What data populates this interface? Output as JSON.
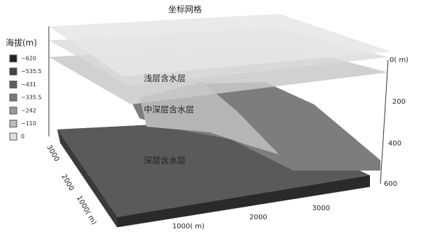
{
  "title": "坐标网格",
  "legend": {
    "title": "海拔(m)",
    "items": [
      "−620",
      "−535.5",
      "−431",
      "−335.5",
      "−242",
      "−110",
      "0"
    ]
  },
  "depth_axis": {
    "ticks": [
      "0( m)",
      "200",
      "400",
      "600"
    ]
  },
  "x_axis": {
    "ticks": [
      "1000( m)",
      "2000",
      "3000"
    ]
  },
  "y_axis": {
    "ticks": [
      "3000",
      "2000",
      "1000( m)"
    ]
  },
  "layers": [
    "浅层含水层",
    "中深层含水层",
    "深层含水层"
  ]
}
